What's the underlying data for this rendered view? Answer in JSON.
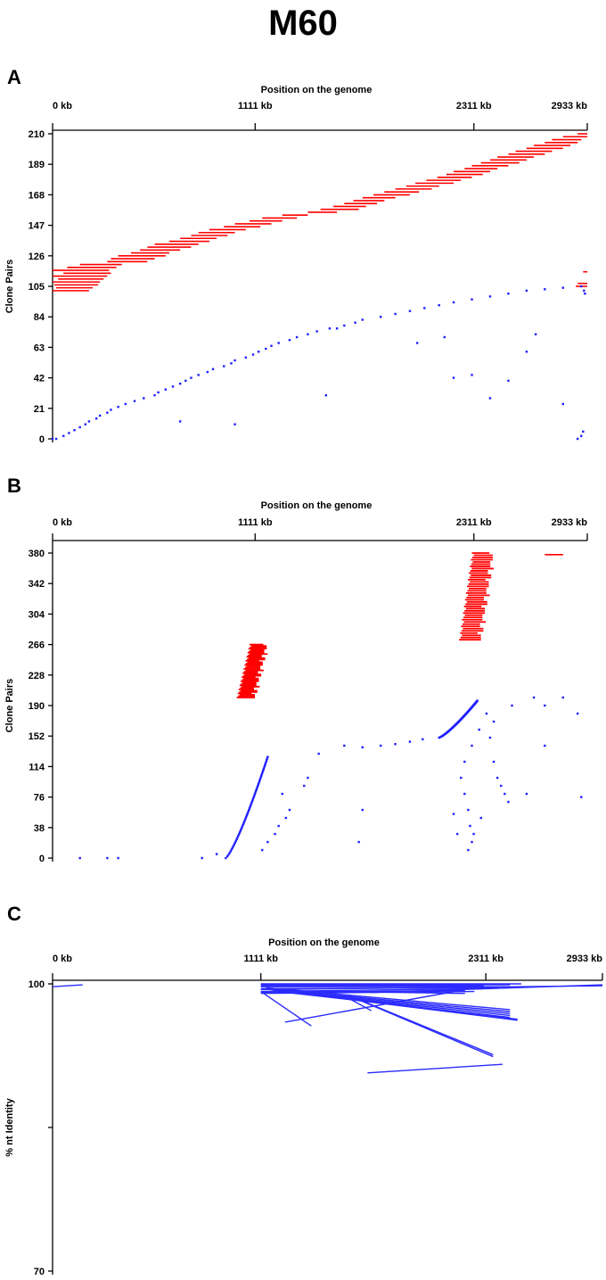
{
  "title": "M60",
  "colors": {
    "forward": "#ff0000",
    "reverse": "#1f1fff",
    "alignment": "#2b2bff",
    "axis": "#000000"
  },
  "chart_data": [
    {
      "panel": "A",
      "type": "scatter",
      "xlabel": "Position on the genome",
      "ylabel": "Clone Pairs",
      "x_ticks": [
        {
          "value": 0,
          "label": "0 kb"
        },
        {
          "value": 1111,
          "label": "1111 kb"
        },
        {
          "value": 2311,
          "label": "2311 kb"
        },
        {
          "value": 2933,
          "label": "2933 kb"
        }
      ],
      "y_ticks": [
        0,
        21,
        42,
        63,
        84,
        105,
        126,
        147,
        168,
        189,
        210
      ],
      "xlim": [
        0,
        2933
      ],
      "ylim": [
        0,
        210
      ],
      "forward_segments": [
        [
          0,
          102,
          200
        ],
        [
          20,
          104,
          220
        ],
        [
          10,
          106,
          250
        ],
        [
          0,
          108,
          260
        ],
        [
          30,
          110,
          280
        ],
        [
          0,
          112,
          300
        ],
        [
          60,
          114,
          320
        ],
        [
          0,
          116,
          310
        ],
        [
          80,
          118,
          350
        ],
        [
          150,
          120,
          380
        ],
        [
          300,
          122,
          520
        ],
        [
          320,
          124,
          560
        ],
        [
          360,
          126,
          620
        ],
        [
          430,
          128,
          640
        ],
        [
          480,
          130,
          700
        ],
        [
          520,
          132,
          760
        ],
        [
          560,
          134,
          800
        ],
        [
          640,
          136,
          860
        ],
        [
          700,
          138,
          900
        ],
        [
          760,
          140,
          960
        ],
        [
          800,
          142,
          1000
        ],
        [
          860,
          144,
          1060
        ],
        [
          940,
          146,
          1140
        ],
        [
          1000,
          148,
          1200
        ],
        [
          1080,
          150,
          1260
        ],
        [
          1150,
          152,
          1340
        ],
        [
          1260,
          154,
          1400
        ],
        [
          1400,
          156,
          1560
        ],
        [
          1470,
          158,
          1680
        ],
        [
          1540,
          160,
          1720
        ],
        [
          1600,
          162,
          1780
        ],
        [
          1650,
          164,
          1820
        ],
        [
          1700,
          166,
          1880
        ],
        [
          1760,
          168,
          1960
        ],
        [
          1820,
          170,
          2010
        ],
        [
          1880,
          172,
          2080
        ],
        [
          1940,
          174,
          2120
        ],
        [
          1990,
          176,
          2200
        ],
        [
          2050,
          178,
          2240
        ],
        [
          2110,
          180,
          2300
        ],
        [
          2160,
          182,
          2360
        ],
        [
          2200,
          184,
          2400
        ],
        [
          2260,
          186,
          2440
        ],
        [
          2300,
          188,
          2500
        ],
        [
          2350,
          190,
          2560
        ],
        [
          2400,
          192,
          2600
        ],
        [
          2440,
          194,
          2640
        ],
        [
          2500,
          196,
          2700
        ],
        [
          2540,
          198,
          2740
        ],
        [
          2600,
          200,
          2800
        ],
        [
          2640,
          202,
          2840
        ],
        [
          2700,
          204,
          2880
        ],
        [
          2740,
          206,
          2900
        ],
        [
          2800,
          208,
          2933
        ],
        [
          2880,
          210,
          2933
        ],
        [
          2870,
          105,
          2933
        ],
        [
          2880,
          107,
          2933
        ],
        [
          2910,
          115,
          2933
        ]
      ],
      "reverse_points": [
        [
          0,
          0
        ],
        [
          20,
          0
        ],
        [
          60,
          2
        ],
        [
          90,
          4
        ],
        [
          120,
          6
        ],
        [
          150,
          8
        ],
        [
          180,
          10
        ],
        [
          200,
          12
        ],
        [
          240,
          14
        ],
        [
          260,
          16
        ],
        [
          300,
          18
        ],
        [
          320,
          20
        ],
        [
          360,
          22
        ],
        [
          400,
          24
        ],
        [
          450,
          26
        ],
        [
          500,
          28
        ],
        [
          560,
          30
        ],
        [
          580,
          32
        ],
        [
          620,
          34
        ],
        [
          660,
          36
        ],
        [
          700,
          38
        ],
        [
          730,
          40
        ],
        [
          760,
          42
        ],
        [
          800,
          44
        ],
        [
          850,
          46
        ],
        [
          880,
          48
        ],
        [
          940,
          50
        ],
        [
          980,
          52
        ],
        [
          1000,
          54
        ],
        [
          1060,
          56
        ],
        [
          1100,
          58
        ],
        [
          1130,
          60
        ],
        [
          1170,
          62
        ],
        [
          1200,
          64
        ],
        [
          1240,
          66
        ],
        [
          1300,
          68
        ],
        [
          1340,
          70
        ],
        [
          1400,
          72
        ],
        [
          1450,
          74
        ],
        [
          1520,
          76
        ],
        [
          1560,
          76
        ],
        [
          1600,
          78
        ],
        [
          1660,
          80
        ],
        [
          1700,
          82
        ],
        [
          1800,
          84
        ],
        [
          1880,
          86
        ],
        [
          1960,
          88
        ],
        [
          2040,
          90
        ],
        [
          2120,
          92
        ],
        [
          2200,
          94
        ],
        [
          2300,
          96
        ],
        [
          2400,
          98
        ],
        [
          2500,
          100
        ],
        [
          2600,
          102
        ],
        [
          2700,
          103
        ],
        [
          2800,
          104
        ],
        [
          2900,
          105
        ],
        [
          2915,
          102
        ],
        [
          2920,
          100
        ],
        [
          2400,
          28
        ],
        [
          2500,
          40
        ],
        [
          2300,
          44
        ],
        [
          2200,
          42
        ],
        [
          2600,
          60
        ],
        [
          2650,
          72
        ],
        [
          2150,
          70
        ],
        [
          2000,
          66
        ],
        [
          1500,
          30
        ],
        [
          1000,
          10
        ],
        [
          700,
          12
        ],
        [
          2800,
          24
        ],
        [
          2880,
          0
        ],
        [
          2900,
          2
        ],
        [
          2910,
          5
        ]
      ]
    },
    {
      "panel": "B",
      "type": "scatter",
      "xlabel": "Position on the genome",
      "ylabel": "Clone Pairs",
      "x_ticks": [
        {
          "value": 0,
          "label": "0 kb"
        },
        {
          "value": 1111,
          "label": "1111 kb"
        },
        {
          "value": 2311,
          "label": "2311 kb"
        },
        {
          "value": 2933,
          "label": "2933 kb"
        }
      ],
      "y_ticks": [
        0,
        38,
        76,
        114,
        152,
        190,
        228,
        266,
        304,
        342,
        380
      ],
      "xlim": [
        0,
        2933
      ],
      "ylim": [
        0,
        380
      ],
      "forward_block_1": {
        "y_start": 200,
        "y_end": 266,
        "x_left_start": 1010,
        "x_left_end": 1080,
        "length": 100
      },
      "forward_block_2": {
        "y_start": 272,
        "y_end": 380,
        "x_left_start": 2230,
        "x_left_end": 2300,
        "length": 120
      },
      "forward_single": [
        2700,
        378,
        2800
      ],
      "reverse_chain_1": {
        "x_start": 950,
        "y_start": 0,
        "x_end": 1180,
        "y_end": 126
      },
      "reverse_chain_2": {
        "x_start": 2120,
        "y_start": 150,
        "x_end": 2330,
        "y_end": 196
      },
      "reverse_points": [
        [
          150,
          0
        ],
        [
          300,
          0
        ],
        [
          360,
          0
        ],
        [
          820,
          0
        ],
        [
          900,
          5
        ],
        [
          1150,
          10
        ],
        [
          1180,
          20
        ],
        [
          1220,
          30
        ],
        [
          1240,
          40
        ],
        [
          1280,
          50
        ],
        [
          1300,
          60
        ],
        [
          1260,
          80
        ],
        [
          1400,
          100
        ],
        [
          1460,
          130
        ],
        [
          1600,
          140
        ],
        [
          1700,
          138
        ],
        [
          1800,
          140
        ],
        [
          1880,
          142
        ],
        [
          1960,
          145
        ],
        [
          2030,
          148
        ],
        [
          2280,
          10
        ],
        [
          2300,
          20
        ],
        [
          2310,
          30
        ],
        [
          2290,
          40
        ],
        [
          2280,
          60
        ],
        [
          2260,
          80
        ],
        [
          2240,
          100
        ],
        [
          2260,
          120
        ],
        [
          2300,
          140
        ],
        [
          2340,
          160
        ],
        [
          2380,
          180
        ],
        [
          2400,
          150
        ],
        [
          2420,
          120
        ],
        [
          2440,
          100
        ],
        [
          2460,
          90
        ],
        [
          2480,
          80
        ],
        [
          2500,
          70
        ],
        [
          2420,
          170
        ],
        [
          2520,
          190
        ],
        [
          2640,
          200
        ],
        [
          2700,
          190
        ],
        [
          2800,
          200
        ],
        [
          2880,
          180
        ],
        [
          2700,
          140
        ],
        [
          2600,
          80
        ],
        [
          2900,
          76
        ],
        [
          1700,
          60
        ],
        [
          1680,
          20
        ],
        [
          1380,
          90
        ],
        [
          2350,
          50
        ],
        [
          2220,
          30
        ],
        [
          2200,
          55
        ]
      ]
    },
    {
      "panel": "C",
      "type": "line",
      "xlabel": "Position on the genome",
      "ylabel": "% nt Identity",
      "x_ticks": [
        {
          "value": 0,
          "label": "0 kb"
        },
        {
          "value": 1111,
          "label": "1111 kb"
        },
        {
          "value": 2311,
          "label": "2311 kb"
        },
        {
          "value": 2933,
          "label": "2933 kb"
        }
      ],
      "y_ticks": [
        {
          "value": 100,
          "label": "100"
        },
        {
          "value": 85,
          "label": ""
        },
        {
          "value": 70,
          "label": "70"
        }
      ],
      "xlim": [
        0,
        2933
      ],
      "ylim": [
        70,
        100
      ],
      "segments": [
        [
          0,
          99.7,
          160,
          99.9
        ],
        [
          1111,
          100,
          2500,
          100
        ],
        [
          1111,
          99.9,
          2440,
          99.9
        ],
        [
          1111,
          99.8,
          2300,
          99.8
        ],
        [
          1111,
          99.7,
          2440,
          99.7
        ],
        [
          1111,
          99.5,
          2380,
          99.6
        ],
        [
          1111,
          99.4,
          2933,
          99.8
        ],
        [
          1111,
          99.2,
          2300,
          99.5
        ],
        [
          1111,
          99.1,
          2200,
          99.3
        ],
        [
          1111,
          99.0,
          2250,
          99.2
        ],
        [
          1200,
          99.3,
          2200,
          99.0
        ],
        [
          1111,
          99.2,
          1380,
          95.6
        ],
        [
          1240,
          96.0,
          2200,
          99.4
        ],
        [
          1140,
          99.6,
          2440,
          97.3
        ],
        [
          1140,
          99.5,
          2440,
          97.1
        ],
        [
          1160,
          99.4,
          2440,
          96.9
        ],
        [
          1180,
          99.3,
          2440,
          96.7
        ],
        [
          1200,
          99.2,
          2440,
          96.5
        ],
        [
          1300,
          99.1,
          2480,
          96.3
        ],
        [
          1320,
          99.0,
          2480,
          96.2
        ],
        [
          1580,
          98.8,
          2350,
          92.6
        ],
        [
          1600,
          98.6,
          2350,
          92.4
        ],
        [
          1560,
          98.7,
          1700,
          97.2
        ],
        [
          1680,
          90.7,
          2400,
          91.6
        ],
        [
          1700,
          99.1,
          2933,
          99.9
        ]
      ]
    }
  ]
}
